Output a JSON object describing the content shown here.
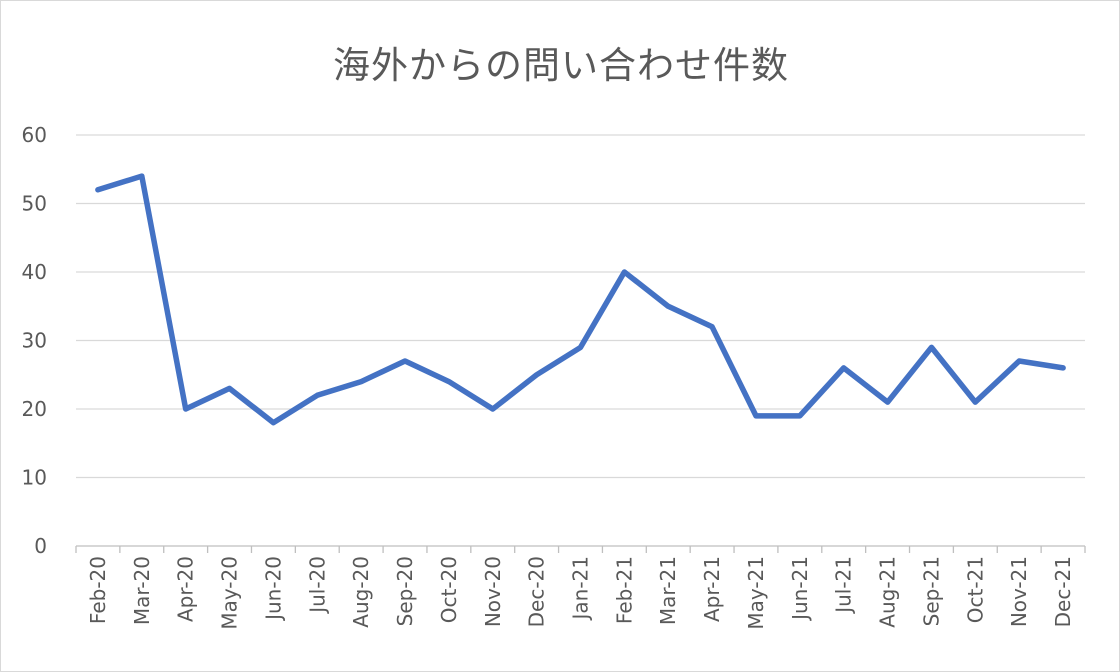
{
  "chart_data": {
    "type": "line",
    "title": "海外からの問い合わせ件数",
    "categories": [
      "Feb-20",
      "Mar-20",
      "Apr-20",
      "May-20",
      "Jun-20",
      "Jul-20",
      "Aug-20",
      "Sep-20",
      "Oct-20",
      "Nov-20",
      "Dec-20",
      "Jan-21",
      "Feb-21",
      "Mar-21",
      "Apr-21",
      "May-21",
      "Jun-21",
      "Jul-21",
      "Aug-21",
      "Sep-21",
      "Oct-21",
      "Nov-21",
      "Dec-21"
    ],
    "series": [
      {
        "values": [
          52,
          54,
          20,
          23,
          18,
          22,
          24,
          27,
          24,
          20,
          25,
          29,
          40,
          35,
          32,
          19,
          19,
          26,
          21,
          29,
          21,
          27,
          26
        ],
        "color": "#4472C4"
      }
    ],
    "ylim": [
      0,
      60
    ],
    "yticks": [
      "0",
      "10",
      "20",
      "30",
      "40",
      "50",
      "60"
    ],
    "grid": true,
    "gridColor": "#d9d9d9",
    "legend": "none"
  }
}
